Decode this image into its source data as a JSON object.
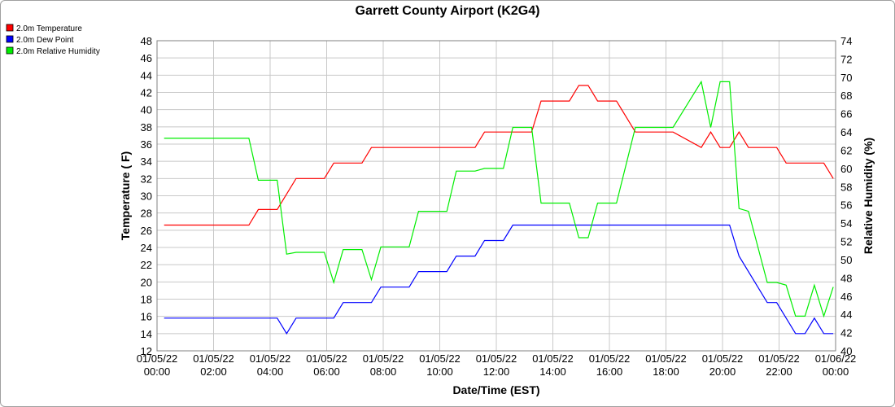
{
  "chart_data": {
    "type": "line",
    "title": "Garrett County Airport (K2G4)",
    "xlabel": "Date/Time (EST)",
    "ylabel": "Temperature ( F)",
    "y2label": "Relative Humidity (%)",
    "ylim": [
      12,
      48
    ],
    "y2lim": [
      40,
      74
    ],
    "ytick_step": 2,
    "y2tick_step": 2,
    "grid": true,
    "legend_position": "top-left",
    "xlim": [
      "01/05/22 00:00",
      "01/06/22 00:00"
    ],
    "x_ticks": [
      {
        "date": "01/05/22",
        "time": "00:00"
      },
      {
        "date": "01/05/22",
        "time": "02:00"
      },
      {
        "date": "01/05/22",
        "time": "04:00"
      },
      {
        "date": "01/05/22",
        "time": "06:00"
      },
      {
        "date": "01/05/22",
        "time": "08:00"
      },
      {
        "date": "01/05/22",
        "time": "10:00"
      },
      {
        "date": "01/05/22",
        "time": "12:00"
      },
      {
        "date": "01/05/22",
        "time": "14:00"
      },
      {
        "date": "01/05/22",
        "time": "16:00"
      },
      {
        "date": "01/05/22",
        "time": "18:00"
      },
      {
        "date": "01/05/22",
        "time": "20:00"
      },
      {
        "date": "01/05/22",
        "time": "22:00"
      },
      {
        "date": "01/06/22",
        "time": "00:00"
      }
    ],
    "series": [
      {
        "name": "2.0m Temperature",
        "color": "#ff0000",
        "axis": "left",
        "points": [
          [
            "01/05/22 00:15",
            26.6
          ],
          [
            "01/05/22 03:15",
            26.6
          ],
          [
            "01/05/22 03:35",
            28.4
          ],
          [
            "01/05/22 04:15",
            28.4
          ],
          [
            "01/05/22 04:55",
            32.0
          ],
          [
            "01/05/22 05:55",
            32.0
          ],
          [
            "01/05/22 06:15",
            33.8
          ],
          [
            "01/05/22 07:15",
            33.8
          ],
          [
            "01/05/22 07:35",
            35.6
          ],
          [
            "01/05/22 11:15",
            35.6
          ],
          [
            "01/05/22 11:35",
            37.4
          ],
          [
            "01/05/22 13:15",
            37.4
          ],
          [
            "01/05/22 13:35",
            41.0
          ],
          [
            "01/05/22 14:35",
            41.0
          ],
          [
            "01/05/22 14:55",
            42.8
          ],
          [
            "01/05/22 15:15",
            42.8
          ],
          [
            "01/05/22 15:35",
            41.0
          ],
          [
            "01/05/22 16:15",
            41.0
          ],
          [
            "01/05/22 16:55",
            37.4
          ],
          [
            "01/05/22 18:15",
            37.4
          ],
          [
            "01/05/22 19:15",
            35.6
          ],
          [
            "01/05/22 19:35",
            37.4
          ],
          [
            "01/05/22 19:55",
            35.6
          ],
          [
            "01/05/22 20:15",
            35.6
          ],
          [
            "01/05/22 20:35",
            37.4
          ],
          [
            "01/05/22 20:55",
            35.6
          ],
          [
            "01/05/22 21:55",
            35.6
          ],
          [
            "01/05/22 22:15",
            33.8
          ],
          [
            "01/05/22 23:35",
            33.8
          ],
          [
            "01/05/22 23:55",
            32.0
          ]
        ]
      },
      {
        "name": "2.0m Dew Point",
        "color": "#0000ff",
        "axis": "left",
        "points": [
          [
            "01/05/22 00:15",
            15.8
          ],
          [
            "01/05/22 04:15",
            15.8
          ],
          [
            "01/05/22 04:35",
            14.0
          ],
          [
            "01/05/22 04:55",
            15.8
          ],
          [
            "01/05/22 06:15",
            15.8
          ],
          [
            "01/05/22 06:35",
            17.6
          ],
          [
            "01/05/22 07:35",
            17.6
          ],
          [
            "01/05/22 07:55",
            19.4
          ],
          [
            "01/05/22 08:55",
            19.4
          ],
          [
            "01/05/22 09:15",
            21.2
          ],
          [
            "01/05/22 10:15",
            21.2
          ],
          [
            "01/05/22 10:35",
            23.0
          ],
          [
            "01/05/22 11:15",
            23.0
          ],
          [
            "01/05/22 11:35",
            24.8
          ],
          [
            "01/05/22 12:15",
            24.8
          ],
          [
            "01/05/22 12:35",
            26.6
          ],
          [
            "01/05/22 20:15",
            26.6
          ],
          [
            "01/05/22 20:35",
            23.0
          ],
          [
            "01/05/22 21:35",
            17.6
          ],
          [
            "01/05/22 21:55",
            17.6
          ],
          [
            "01/05/22 22:35",
            14.0
          ],
          [
            "01/05/22 22:55",
            14.0
          ],
          [
            "01/05/22 23:15",
            15.8
          ],
          [
            "01/05/22 23:35",
            14.0
          ],
          [
            "01/05/22 23:55",
            14.0
          ]
        ]
      },
      {
        "name": "2.0m Relative Humidity",
        "color": "#00ee00",
        "axis": "right",
        "points": [
          [
            "01/05/22 00:15",
            63.3
          ],
          [
            "01/05/22 03:15",
            63.3
          ],
          [
            "01/05/22 03:35",
            58.7
          ],
          [
            "01/05/22 04:15",
            58.7
          ],
          [
            "01/05/22 04:35",
            50.6
          ],
          [
            "01/05/22 04:55",
            50.8
          ],
          [
            "01/05/22 05:55",
            50.8
          ],
          [
            "01/05/22 06:15",
            47.5
          ],
          [
            "01/05/22 06:35",
            51.1
          ],
          [
            "01/05/22 07:15",
            51.1
          ],
          [
            "01/05/22 07:35",
            47.8
          ],
          [
            "01/05/22 07:55",
            51.4
          ],
          [
            "01/05/22 08:55",
            51.4
          ],
          [
            "01/05/22 09:15",
            55.3
          ],
          [
            "01/05/22 10:15",
            55.3
          ],
          [
            "01/05/22 10:35",
            59.7
          ],
          [
            "01/05/22 11:15",
            59.7
          ],
          [
            "01/05/22 11:35",
            60.0
          ],
          [
            "01/05/22 12:15",
            60.0
          ],
          [
            "01/05/22 12:35",
            64.5
          ],
          [
            "01/05/22 13:15",
            64.5
          ],
          [
            "01/05/22 13:35",
            56.2
          ],
          [
            "01/05/22 14:35",
            56.2
          ],
          [
            "01/05/22 14:55",
            52.4
          ],
          [
            "01/05/22 15:15",
            52.4
          ],
          [
            "01/05/22 15:35",
            56.2
          ],
          [
            "01/05/22 16:15",
            56.2
          ],
          [
            "01/05/22 16:55",
            64.5
          ],
          [
            "01/05/22 18:15",
            64.5
          ],
          [
            "01/05/22 19:15",
            69.5
          ],
          [
            "01/05/22 19:35",
            64.5
          ],
          [
            "01/05/22 19:55",
            69.5
          ],
          [
            "01/05/22 20:15",
            69.5
          ],
          [
            "01/05/22 20:35",
            55.6
          ],
          [
            "01/05/22 20:55",
            55.3
          ],
          [
            "01/05/22 21:35",
            47.5
          ],
          [
            "01/05/22 21:55",
            47.5
          ],
          [
            "01/05/22 22:15",
            47.2
          ],
          [
            "01/05/22 22:35",
            43.8
          ],
          [
            "01/05/22 22:55",
            43.8
          ],
          [
            "01/05/22 23:15",
            47.2
          ],
          [
            "01/05/22 23:35",
            43.8
          ],
          [
            "01/05/22 23:55",
            47.0
          ]
        ]
      }
    ]
  }
}
